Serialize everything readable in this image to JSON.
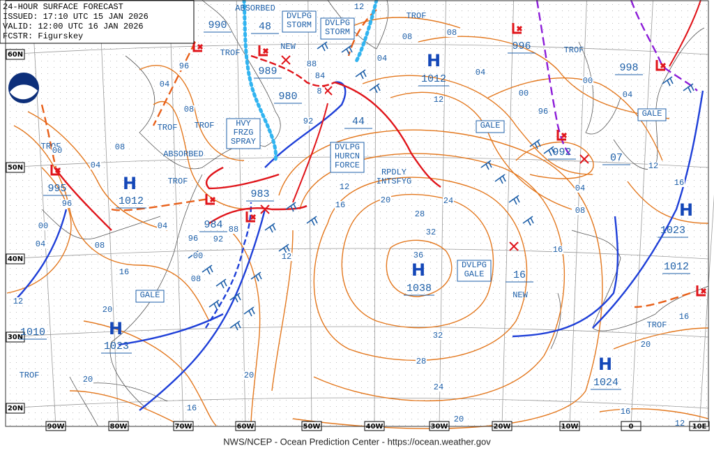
{
  "header": {
    "title": "24-HOUR SURFACE FORECAST",
    "issued": "ISSUED: 17:10 UTC 15 JAN 2026",
    "valid": "VALID:  12:00 UTC 16 JAN 2026",
    "forecaster": "FCSTR:  Figurskey"
  },
  "footer": "NWS/NCEP - Ocean Prediction Center - https://ocean.weather.gov",
  "lat_labels": [
    "60N",
    "50N",
    "40N",
    "30N",
    "20N"
  ],
  "lon_labels": [
    "90W",
    "80W",
    "70W",
    "60W",
    "50W",
    "40W",
    "30W",
    "20W",
    "10W",
    "0",
    "10E"
  ],
  "highs": [
    {
      "symbol": "H",
      "pressure": "1012"
    },
    {
      "symbol": "H",
      "pressure": "1012"
    },
    {
      "symbol": "H",
      "pressure": "1038"
    },
    {
      "symbol": "H",
      "pressure": "1023"
    },
    {
      "symbol": "H",
      "pressure": "1024"
    },
    {
      "symbol": "H",
      "pressure": "1023"
    }
  ],
  "low_pressures": [
    "990",
    "48",
    "996",
    "989",
    "980",
    "998",
    "992",
    "995",
    "983",
    "984",
    "1010",
    "1012",
    "44",
    "07",
    "16"
  ],
  "boxes": [
    [
      "DVLPG",
      "STORM"
    ],
    [
      "DVLPG",
      "STORM"
    ],
    [
      "HVY",
      "FRZG",
      "SPRAY"
    ],
    [
      "DVLPG",
      "HURCN",
      "FORCE"
    ],
    [
      "DVLPG",
      "GALE"
    ],
    [
      "GALE"
    ],
    [
      "GALE"
    ],
    [
      "GALE"
    ]
  ],
  "annotations": [
    "ABSORBED",
    "TROF",
    "NEW",
    "TROF",
    "TROF",
    "TROF",
    "TROF",
    "TROF",
    "ABSORBED",
    "TROF",
    "RPDLY",
    "INTSFYG",
    "NEW",
    "TROF",
    "TROF"
  ],
  "isobar_labels": [
    "12",
    "08",
    "08",
    "04",
    "04",
    "00",
    "96",
    "00",
    "04",
    "12",
    "12",
    "16",
    "04",
    "08",
    "16",
    "96",
    "04",
    "08",
    "00",
    "08",
    "04",
    "96",
    "00",
    "04",
    "08",
    "16",
    "20",
    "12",
    "04",
    "96",
    "92",
    "88",
    "00",
    "08",
    "88",
    "84",
    "8",
    "92",
    "12",
    "16",
    "20",
    "24",
    "28",
    "32",
    "36",
    "12",
    "32",
    "28",
    "24",
    "20",
    "20",
    "20",
    "16",
    "16",
    "20",
    "16",
    "12"
  ]
}
